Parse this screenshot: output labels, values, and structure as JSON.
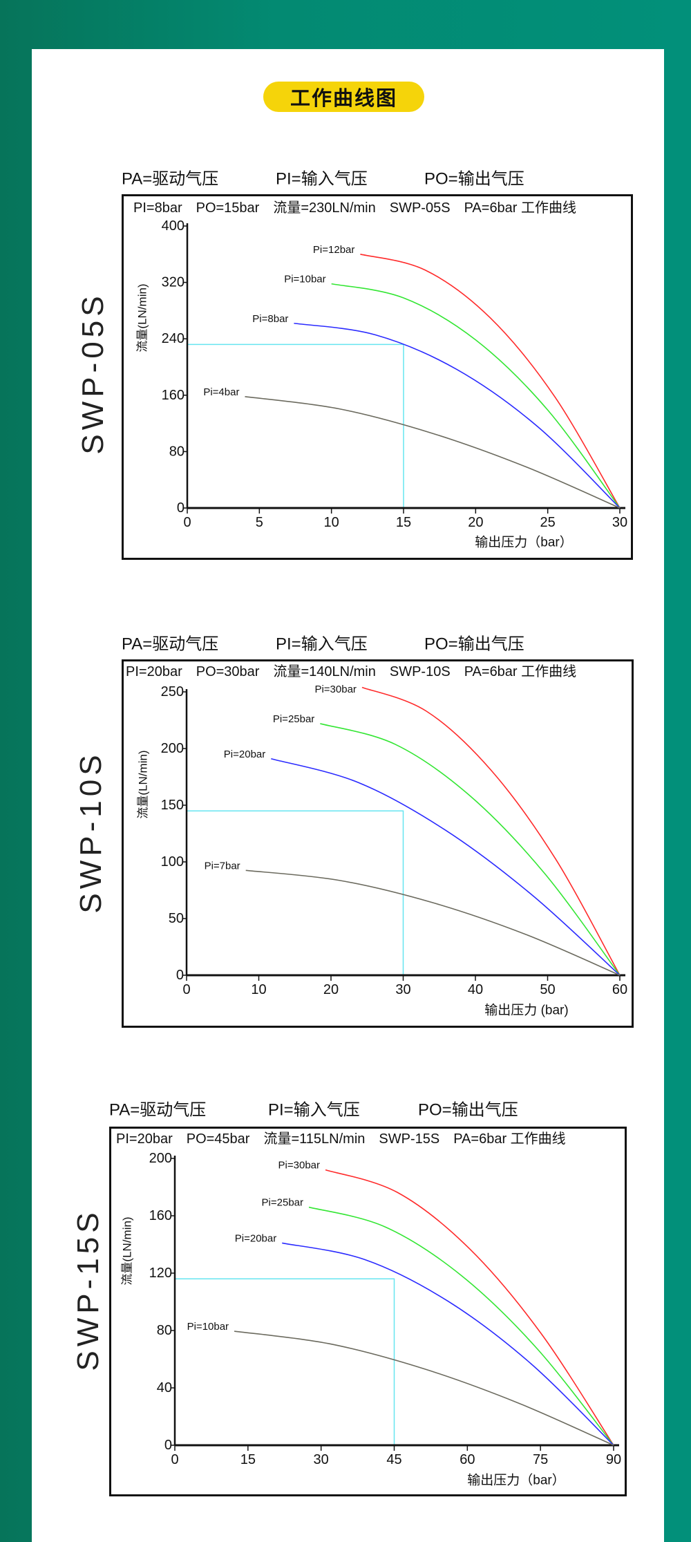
{
  "title": "工作曲线图",
  "colors": {
    "background": "#038a72",
    "pill": "#f5d40a",
    "red": "#ff2a2a",
    "green": "#33e633",
    "blue": "#2a2aff",
    "gray": "#6b6a5e",
    "ref": "#66e5f0"
  },
  "chart_data": [
    {
      "type": "line",
      "model": "SWP-05S",
      "legend": [
        "PA=驱动气压",
        "PI=输入气压",
        "PO=输出气压"
      ],
      "header": [
        "PI=8bar",
        "PO=15bar",
        "流量=230LN/min",
        "SWP-05S",
        "PA=6bar 工作曲线"
      ],
      "ylabel": "流量(LN/min)",
      "xlabel": "输出压力（bar）",
      "xlim": [
        0,
        30
      ],
      "ylim": [
        0,
        400
      ],
      "xticks": [
        "0",
        "5",
        "10",
        "15",
        "20",
        "25",
        "30"
      ],
      "yticks": [
        "0",
        "80",
        "160",
        "240",
        "320",
        "400"
      ],
      "reference": {
        "x": 15,
        "y": 232
      },
      "series": [
        {
          "name": "Pi=12bar",
          "color": "#ff2a2a",
          "x": [
            12,
            16.5,
            21,
            25.5,
            30
          ],
          "y": [
            360,
            337.5,
            270,
            157.5,
            0
          ]
        },
        {
          "name": "Pi=10bar",
          "color": "#33e633",
          "x": [
            10,
            15,
            20,
            25,
            30
          ],
          "y": [
            318,
            298,
            238.5,
            139,
            0
          ]
        },
        {
          "name": "Pi=8bar",
          "color": "#2a2aff",
          "x": [
            7.4,
            13.05,
            18.7,
            24.35,
            30
          ],
          "y": [
            262,
            245.6,
            196.5,
            114.6,
            0
          ]
        },
        {
          "name": "Pi=4bar",
          "color": "#6b6a5e",
          "x": [
            4,
            10.5,
            17,
            23.5,
            30
          ],
          "y": [
            158,
            140.8,
            105.9,
            58.3,
            0
          ]
        }
      ]
    },
    {
      "type": "line",
      "model": "SWP-10S",
      "legend": [
        "PA=驱动气压",
        "PI=输入气压",
        "PO=输出气压"
      ],
      "header": [
        "PI=20bar",
        "PO=30bar",
        "流量=140LN/min",
        "SWP-10S",
        "PA=6bar 工作曲线"
      ],
      "ylabel": "流量(LN/min)",
      "xlabel": "输出压力 (bar)",
      "xlim": [
        0,
        60
      ],
      "ylim": [
        0,
        250
      ],
      "xticks": [
        "0",
        "10",
        "20",
        "30",
        "40",
        "50",
        "60"
      ],
      "yticks": [
        "0",
        "50",
        "100",
        "150",
        "200",
        "250"
      ],
      "reference": {
        "x": 30,
        "y": 145
      },
      "series": [
        {
          "name": "Pi=30bar",
          "color": "#ff2a2a",
          "x": [
            24.3,
            33.2,
            42.15,
            51.1,
            60
          ],
          "y": [
            254,
            233,
            181,
            102.6,
            0
          ]
        },
        {
          "name": "Pi=25bar",
          "color": "#33e633",
          "x": [
            18.5,
            28.9,
            39.25,
            49.6,
            60
          ],
          "y": [
            222,
            203.7,
            158.3,
            89.7,
            0
          ]
        },
        {
          "name": "Pi=20bar",
          "color": "#2a2aff",
          "x": [
            11.7,
            23.8,
            35.85,
            47.9,
            60
          ],
          "y": [
            191,
            170,
            128,
            70.5,
            0
          ]
        },
        {
          "name": "Pi=7bar",
          "color": "#6b6a5e",
          "x": [
            8.2,
            21.15,
            34.1,
            47.05,
            60
          ],
          "y": [
            92.5,
            83.7,
            64,
            35.8,
            0
          ]
        }
      ]
    },
    {
      "type": "line",
      "model": "SWP-15S",
      "legend": [
        "PA=驱动气压",
        "PI=输入气压",
        "PO=输出气压"
      ],
      "header": [
        "PI=20bar",
        "PO=45bar",
        "流量=115LN/min",
        "SWP-15S",
        "PA=6bar 工作曲线"
      ],
      "ylabel": "流量(LN/min)",
      "xlabel": "输出压力（bar）",
      "xlim": [
        0,
        90
      ],
      "ylim": [
        0,
        200
      ],
      "xticks": [
        "0",
        "15",
        "30",
        "45",
        "60",
        "75",
        "90"
      ],
      "yticks": [
        "0",
        "40",
        "80",
        "120",
        "160",
        "200"
      ],
      "reference": {
        "x": 45,
        "y": 116
      },
      "series": [
        {
          "name": "Pi=30bar",
          "color": "#ff2a2a",
          "x": [
            30.9,
            45.7,
            60.45,
            75.2,
            90
          ],
          "y": [
            192,
            176.2,
            137,
            77.6,
            0
          ]
        },
        {
          "name": "Pi=25bar",
          "color": "#33e633",
          "x": [
            27.5,
            43.1,
            58.75,
            74.4,
            90
          ],
          "y": [
            166,
            152.3,
            118.4,
            67,
            0
          ]
        },
        {
          "name": "Pi=20bar",
          "color": "#2a2aff",
          "x": [
            22,
            39,
            56,
            73,
            90
          ],
          "y": [
            141,
            129.4,
            100.5,
            57,
            0
          ]
        },
        {
          "name": "Pi=10bar",
          "color": "#6b6a5e",
          "x": [
            12.2,
            31.65,
            51.1,
            70.55,
            90
          ],
          "y": [
            79.5,
            70.8,
            53.3,
            29.3,
            0
          ]
        }
      ]
    }
  ]
}
